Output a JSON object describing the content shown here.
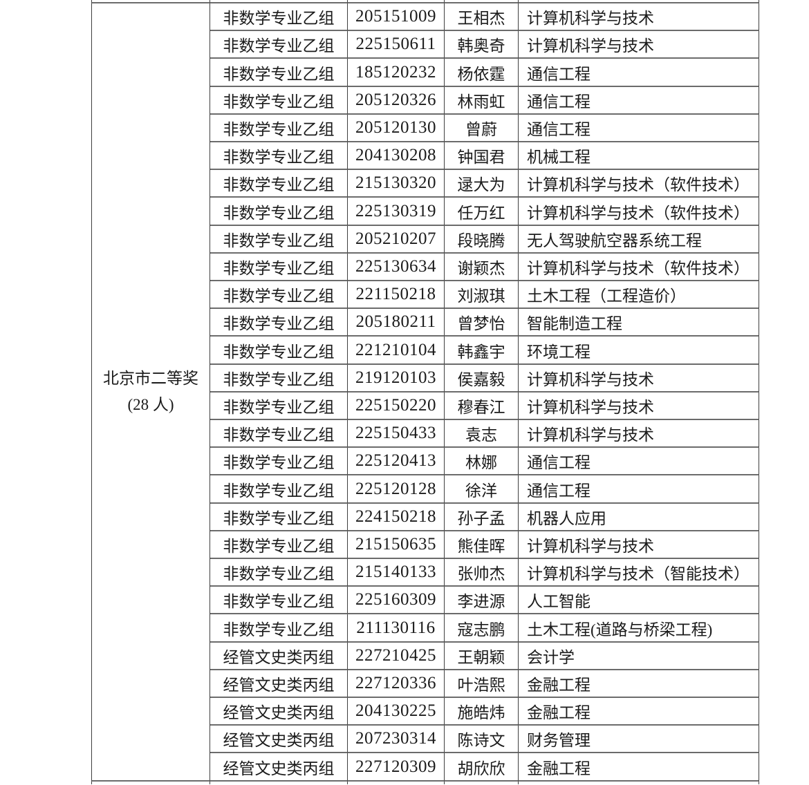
{
  "colors": {
    "background": "#ffffff",
    "text": "#1b1b1b",
    "border_vertical": "#3e3e3e",
    "border_horizontal": "#6b6b6b"
  },
  "table": {
    "prize_label": {
      "line1": "北京市二等奖",
      "line2": "(28 人)"
    },
    "rows": [
      {
        "group": "非数学专业乙组",
        "id": "205151009",
        "name": "王相杰",
        "major": "计算机科学与技术"
      },
      {
        "group": "非数学专业乙组",
        "id": "225150611",
        "name": "韩奥奇",
        "major": "计算机科学与技术"
      },
      {
        "group": "非数学专业乙组",
        "id": "185120232",
        "name": "杨依霆",
        "major": "通信工程"
      },
      {
        "group": "非数学专业乙组",
        "id": "205120326",
        "name": "林雨虹",
        "major": "通信工程"
      },
      {
        "group": "非数学专业乙组",
        "id": "205120130",
        "name": "曾蔚",
        "major": "通信工程"
      },
      {
        "group": "非数学专业乙组",
        "id": "204130208",
        "name": "钟国君",
        "major": "机械工程"
      },
      {
        "group": "非数学专业乙组",
        "id": "215130320",
        "name": "逯大为",
        "major": "计算机科学与技术（软件技术）"
      },
      {
        "group": "非数学专业乙组",
        "id": "225130319",
        "name": "任万红",
        "major": "计算机科学与技术（软件技术）"
      },
      {
        "group": "非数学专业乙组",
        "id": "205210207",
        "name": "段晓腾",
        "major": "无人驾驶航空器系统工程"
      },
      {
        "group": "非数学专业乙组",
        "id": "225130634",
        "name": "谢颖杰",
        "major": "计算机科学与技术（软件技术）"
      },
      {
        "group": "非数学专业乙组",
        "id": "221150218",
        "name": "刘淑琪",
        "major": "土木工程（工程造价）"
      },
      {
        "group": "非数学专业乙组",
        "id": "205180211",
        "name": "曾梦怡",
        "major": "智能制造工程"
      },
      {
        "group": "非数学专业乙组",
        "id": "221210104",
        "name": "韩鑫宇",
        "major": "环境工程"
      },
      {
        "group": "非数学专业乙组",
        "id": "219120103",
        "name": "侯嘉毅",
        "major": "计算机科学与技术"
      },
      {
        "group": "非数学专业乙组",
        "id": "225150220",
        "name": "穆春江",
        "major": "计算机科学与技术"
      },
      {
        "group": "非数学专业乙组",
        "id": "225150433",
        "name": "袁志",
        "major": "计算机科学与技术"
      },
      {
        "group": "非数学专业乙组",
        "id": "225120413",
        "name": "林娜",
        "major": "通信工程"
      },
      {
        "group": "非数学专业乙组",
        "id": "225120128",
        "name": "徐洋",
        "major": "通信工程"
      },
      {
        "group": "非数学专业乙组",
        "id": "224150218",
        "name": "孙子孟",
        "major": "机器人应用"
      },
      {
        "group": "非数学专业乙组",
        "id": "215150635",
        "name": "熊佳晖",
        "major": "计算机科学与技术"
      },
      {
        "group": "非数学专业乙组",
        "id": "215140133",
        "name": "张帅杰",
        "major": "计算机科学与技术（智能技术）"
      },
      {
        "group": "非数学专业乙组",
        "id": "225160309",
        "name": "李进源",
        "major": "人工智能"
      },
      {
        "group": "非数学专业乙组",
        "id": "211130116",
        "name": "寇志鹏",
        "major": "土木工程(道路与桥梁工程)"
      },
      {
        "group": "经管文史类丙组",
        "id": "227210425",
        "name": "王朝颖",
        "major": "会计学"
      },
      {
        "group": "经管文史类丙组",
        "id": "227120336",
        "name": "叶浩熙",
        "major": "金融工程"
      },
      {
        "group": "经管文史类丙组",
        "id": "204130225",
        "name": "施皓炜",
        "major": "金融工程"
      },
      {
        "group": "经管文史类丙组",
        "id": "207230314",
        "name": "陈诗文",
        "major": "财务管理"
      },
      {
        "group": "经管文史类丙组",
        "id": "227120309",
        "name": "胡欣欣",
        "major": "金融工程"
      }
    ]
  }
}
